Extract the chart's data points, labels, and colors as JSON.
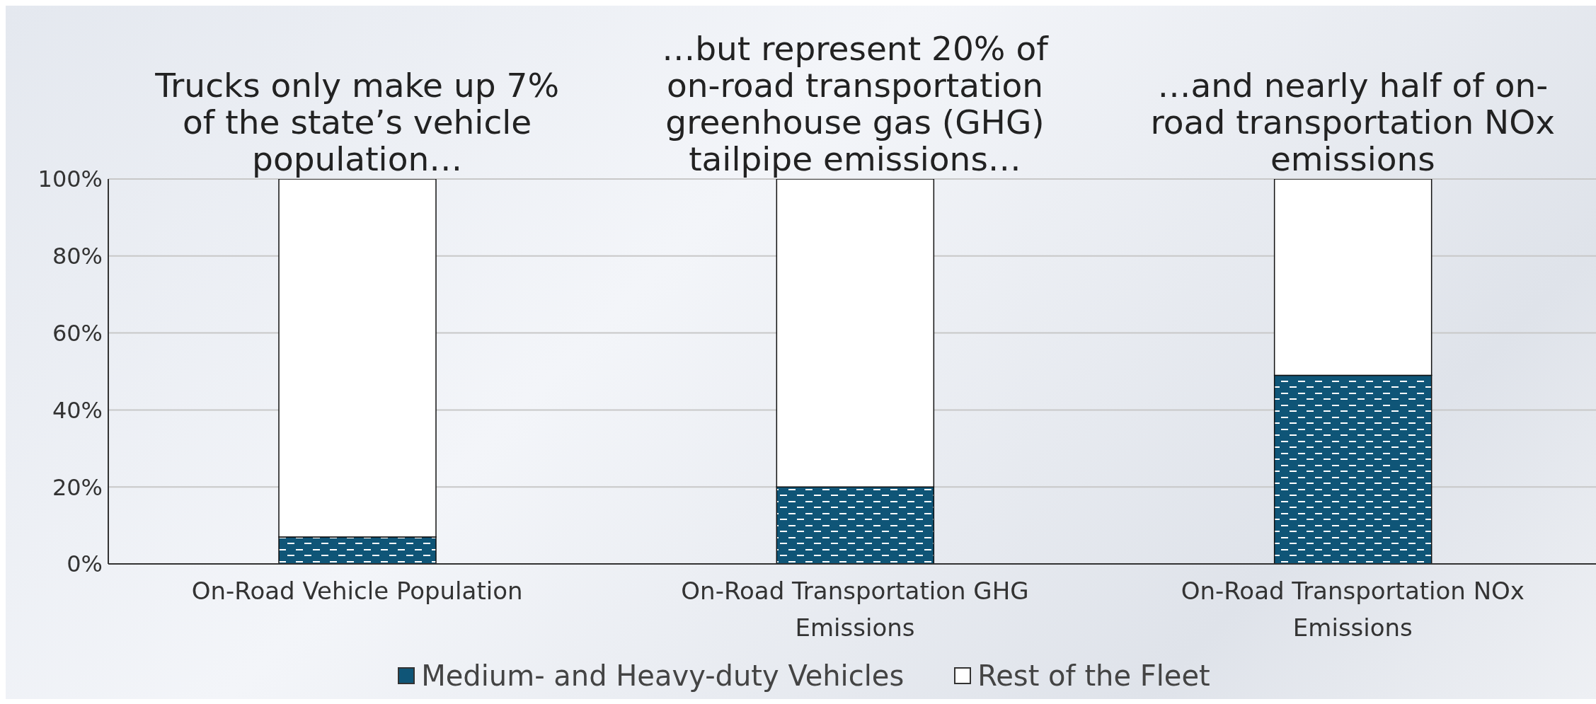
{
  "chart_data": {
    "type": "bar",
    "stacked": true,
    "categories": [
      "On-Road Vehicle Population",
      "On-Road Transportation GHG Emissions",
      "On-Road Transportation NOx Emissions"
    ],
    "series": [
      {
        "name": "Medium- and Heavy-duty Vehicles",
        "color": "#0f5577",
        "values": [
          7,
          20,
          49
        ]
      },
      {
        "name": "Rest of the Fleet",
        "color": "#ffffff",
        "values": [
          93,
          80,
          51
        ]
      }
    ],
    "ylim": [
      0,
      100
    ],
    "yticks": [
      {
        "value": 0,
        "label": "0%"
      },
      {
        "value": 20,
        "label": "20%"
      },
      {
        "value": 40,
        "label": "40%"
      },
      {
        "value": 60,
        "label": "60%"
      },
      {
        "value": 80,
        "label": "80%"
      },
      {
        "value": 100,
        "label": "100%"
      }
    ],
    "grid": "y",
    "legend": "bottom",
    "annotations": [
      {
        "text": "Trucks only make up 7% of the state’s vehicle population…",
        "x": "On-Road Vehicle Population",
        "y": 100
      },
      {
        "text": "…but represent 20% of on-road transportation greenhouse gas (GHG) tailpipe emissions…",
        "x": "On-Road Transportation GHG Emissions",
        "y": 100
      },
      {
        "text": "…and nearly half of on-road transportation NOx emissions",
        "x": "On-Road Transportation NOx Emissions",
        "y": 100
      }
    ]
  }
}
